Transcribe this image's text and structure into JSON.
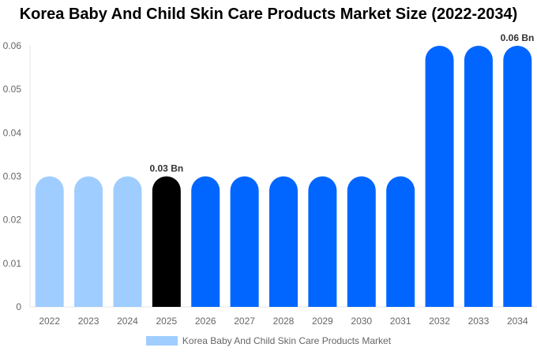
{
  "chart_data": {
    "type": "bar",
    "title": "Korea Baby And Child Skin Care Products Market Size (2022-2034)",
    "categories": [
      "2022",
      "2023",
      "2024",
      "2025",
      "2026",
      "2027",
      "2028",
      "2029",
      "2030",
      "2031",
      "2032",
      "2033",
      "2034"
    ],
    "series": [
      {
        "name": "Korea Baby And Child Skin Care Products Market",
        "values": [
          0.03,
          0.03,
          0.03,
          0.03,
          0.03,
          0.03,
          0.03,
          0.03,
          0.03,
          0.03,
          0.06,
          0.06,
          0.06
        ]
      }
    ],
    "ylim": [
      0,
      0.06
    ],
    "yticks": [
      "0",
      "0.01",
      "0.02",
      "0.03",
      "0.04",
      "0.05",
      "0.06"
    ],
    "data_labels": [
      {
        "category": "2025",
        "text": "0.03 Bn"
      },
      {
        "category": "2034",
        "text": "0.06 Bn"
      }
    ],
    "colors": {
      "historic": "#a0cdff",
      "current": "#000000",
      "forecast": "#0066ff"
    },
    "bar_color_groups": [
      "historic",
      "historic",
      "historic",
      "current",
      "forecast",
      "forecast",
      "forecast",
      "forecast",
      "forecast",
      "forecast",
      "forecast",
      "forecast",
      "forecast"
    ],
    "grid": false,
    "legend": "bottom"
  }
}
